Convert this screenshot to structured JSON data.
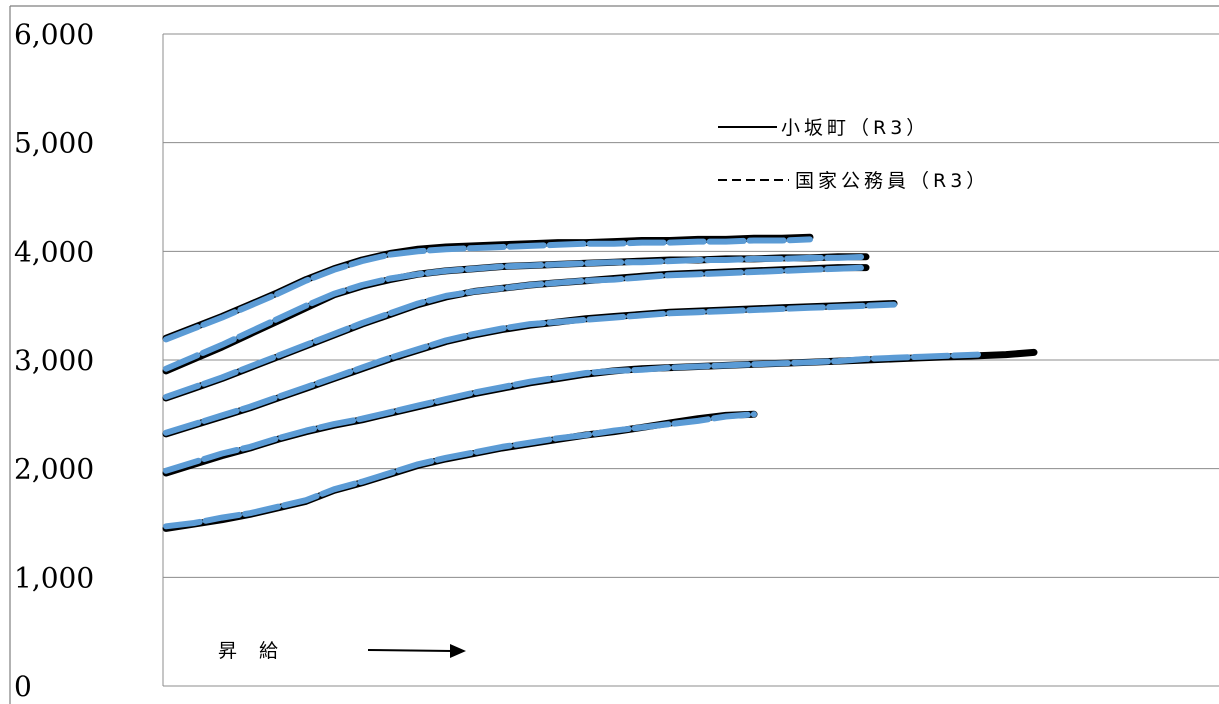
{
  "chart_data": {
    "type": "line",
    "title": "",
    "xlabel": "",
    "ylabel": "",
    "ylim": [
      0,
      6000
    ],
    "yticks": [
      "0",
      "1,000",
      "2,000",
      "3,000",
      "4,000",
      "5,000",
      "6,000"
    ],
    "grid": true,
    "legend_position": "top-right",
    "legend": [
      {
        "label": "小坂町（R3）",
        "style": "solid",
        "color": "#000000"
      },
      {
        "label": "国家公務員（R3）",
        "style": "dashed",
        "color": "#000000"
      }
    ],
    "annotation": {
      "label": "昇給",
      "arrow": "right"
    },
    "colors": {
      "town": "#000000",
      "national": "#5b9bd5"
    },
    "series": [
      {
        "group": "小坂町（R3）",
        "tier": 1,
        "x": [
          0,
          5,
          10,
          15,
          20,
          25,
          30,
          35,
          40,
          45,
          50,
          55,
          60,
          65,
          70,
          75,
          80,
          85,
          90,
          95,
          100,
          105
        ],
        "values": [
          1450,
          1490,
          1530,
          1580,
          1640,
          1700,
          1800,
          1870,
          1950,
          2030,
          2090,
          2140,
          2190,
          2230,
          2270,
          2310,
          2340,
          2380,
          2420,
          2460,
          2490,
          2500
        ]
      },
      {
        "group": "国家公務員（R3）",
        "tier": 1,
        "x": [
          0,
          5,
          10,
          15,
          20,
          25,
          30,
          35,
          40,
          45,
          50,
          55,
          60,
          65,
          70,
          75,
          80,
          85,
          90,
          95,
          100,
          105
        ],
        "values": [
          1470,
          1500,
          1550,
          1590,
          1650,
          1710,
          1810,
          1880,
          1960,
          2040,
          2100,
          2150,
          2200,
          2240,
          2280,
          2310,
          2350,
          2380,
          2410,
          2440,
          2480,
          2500
        ]
      },
      {
        "group": "小坂町（R3）",
        "tier": 2,
        "x": [
          0,
          5,
          10,
          15,
          20,
          25,
          30,
          35,
          40,
          45,
          50,
          55,
          60,
          65,
          70,
          75,
          80,
          85,
          90,
          95,
          100,
          105,
          110,
          115,
          120,
          125,
          130,
          135,
          140,
          145,
          150,
          155
        ],
        "values": [
          1960,
          2040,
          2120,
          2190,
          2270,
          2340,
          2400,
          2450,
          2510,
          2570,
          2630,
          2690,
          2740,
          2790,
          2830,
          2870,
          2900,
          2920,
          2930,
          2940,
          2950,
          2960,
          2970,
          2980,
          2990,
          3000,
          3010,
          3020,
          3030,
          3040,
          3050,
          3070
        ]
      },
      {
        "group": "国家公務員（R3）",
        "tier": 2,
        "x": [
          0,
          5,
          10,
          15,
          20,
          25,
          30,
          35,
          40,
          45,
          50,
          55,
          60,
          65,
          70,
          75,
          80,
          85,
          90,
          95,
          100,
          105,
          110,
          115,
          120,
          125,
          130,
          135,
          140,
          145
        ],
        "values": [
          1980,
          2060,
          2140,
          2200,
          2280,
          2350,
          2410,
          2460,
          2520,
          2580,
          2640,
          2700,
          2750,
          2800,
          2840,
          2880,
          2900,
          2910,
          2930,
          2940,
          2950,
          2960,
          2970,
          2980,
          2990,
          3010,
          3020,
          3030,
          3040,
          3050
        ]
      },
      {
        "group": "小坂町（R3）",
        "tier": 3,
        "x": [
          0,
          5,
          10,
          15,
          20,
          25,
          30,
          35,
          40,
          45,
          50,
          55,
          60,
          65,
          70,
          75,
          80,
          85,
          90,
          95,
          100,
          105,
          110,
          115,
          120,
          125,
          130
        ],
        "values": [
          2320,
          2400,
          2480,
          2560,
          2650,
          2740,
          2830,
          2920,
          3010,
          3090,
          3170,
          3230,
          3280,
          3320,
          3350,
          3380,
          3400,
          3420,
          3440,
          3450,
          3460,
          3470,
          3480,
          3490,
          3500,
          3510,
          3520
        ]
      },
      {
        "group": "国家公務員（R3）",
        "tier": 3,
        "x": [
          0,
          5,
          10,
          15,
          20,
          25,
          30,
          35,
          40,
          45,
          50,
          55,
          60,
          65,
          70,
          75,
          80,
          85,
          90,
          95,
          100,
          105,
          110,
          115,
          120,
          125,
          130
        ],
        "values": [
          2330,
          2410,
          2490,
          2570,
          2660,
          2750,
          2840,
          2930,
          3020,
          3100,
          3180,
          3240,
          3290,
          3330,
          3350,
          3370,
          3390,
          3410,
          3430,
          3440,
          3450,
          3460,
          3470,
          3480,
          3490,
          3500,
          3510
        ]
      },
      {
        "group": "小坂町（R3）",
        "tier": 4,
        "x": [
          0,
          5,
          10,
          15,
          20,
          25,
          30,
          35,
          40,
          45,
          50,
          55,
          60,
          65,
          70,
          75,
          80,
          85,
          90,
          95,
          100,
          105,
          110,
          115,
          120,
          125
        ],
        "values": [
          2650,
          2740,
          2830,
          2930,
          3030,
          3130,
          3230,
          3330,
          3420,
          3510,
          3580,
          3630,
          3660,
          3690,
          3710,
          3730,
          3750,
          3770,
          3790,
          3800,
          3810,
          3820,
          3830,
          3840,
          3850,
          3850
        ]
      },
      {
        "group": "国家公務員（R3）",
        "tier": 4,
        "x": [
          0,
          5,
          10,
          15,
          20,
          25,
          30,
          35,
          40,
          45,
          50,
          55,
          60,
          65,
          70,
          75,
          80,
          85,
          90,
          95,
          100,
          105,
          110,
          115,
          120,
          125
        ],
        "values": [
          2660,
          2750,
          2840,
          2940,
          3040,
          3140,
          3240,
          3340,
          3430,
          3520,
          3590,
          3630,
          3660,
          3690,
          3710,
          3730,
          3740,
          3760,
          3780,
          3790,
          3800,
          3810,
          3820,
          3830,
          3840,
          3850
        ]
      },
      {
        "group": "小坂町（R3）",
        "tier": 5,
        "x": [
          0,
          5,
          10,
          15,
          20,
          25,
          30,
          35,
          40,
          45,
          50,
          55,
          60,
          65,
          70,
          75,
          80,
          85,
          90,
          95,
          100,
          105,
          110,
          115,
          120,
          125
        ],
        "values": [
          2900,
          3010,
          3120,
          3240,
          3360,
          3480,
          3600,
          3680,
          3740,
          3790,
          3820,
          3840,
          3860,
          3870,
          3880,
          3890,
          3900,
          3910,
          3920,
          3920,
          3930,
          3930,
          3940,
          3940,
          3950,
          3950
        ]
      },
      {
        "group": "国家公務員（R3）",
        "tier": 5,
        "x": [
          0,
          5,
          10,
          15,
          20,
          25,
          30,
          35,
          40,
          45,
          50,
          55,
          60,
          65,
          70,
          75,
          80,
          85,
          90,
          95,
          100,
          105,
          110,
          115,
          120,
          125
        ],
        "values": [
          2920,
          3030,
          3140,
          3260,
          3380,
          3500,
          3610,
          3690,
          3750,
          3790,
          3820,
          3840,
          3860,
          3870,
          3880,
          3890,
          3900,
          3900,
          3910,
          3920,
          3920,
          3930,
          3930,
          3940,
          3940,
          3950
        ]
      },
      {
        "group": "小坂町（R3）",
        "tier": 6,
        "x": [
          0,
          5,
          10,
          15,
          20,
          25,
          30,
          35,
          40,
          45,
          50,
          55,
          60,
          65,
          70,
          75,
          80,
          85,
          90,
          95,
          100,
          105,
          110,
          115
        ],
        "values": [
          3200,
          3300,
          3400,
          3510,
          3620,
          3740,
          3840,
          3920,
          3980,
          4020,
          4040,
          4050,
          4060,
          4070,
          4080,
          4080,
          4090,
          4100,
          4100,
          4110,
          4110,
          4120,
          4120,
          4130
        ]
      },
      {
        "group": "国家公務員（R3）",
        "tier": 6,
        "x": [
          0,
          5,
          10,
          15,
          20,
          25,
          30,
          35,
          40,
          45,
          50,
          55,
          60,
          65,
          70,
          75,
          80,
          85,
          90,
          95,
          100,
          105,
          110,
          115
        ],
        "values": [
          3190,
          3290,
          3390,
          3500,
          3610,
          3730,
          3830,
          3910,
          3970,
          4000,
          4020,
          4030,
          4040,
          4050,
          4060,
          4070,
          4070,
          4080,
          4080,
          4090,
          4090,
          4100,
          4100,
          4110
        ]
      }
    ]
  }
}
